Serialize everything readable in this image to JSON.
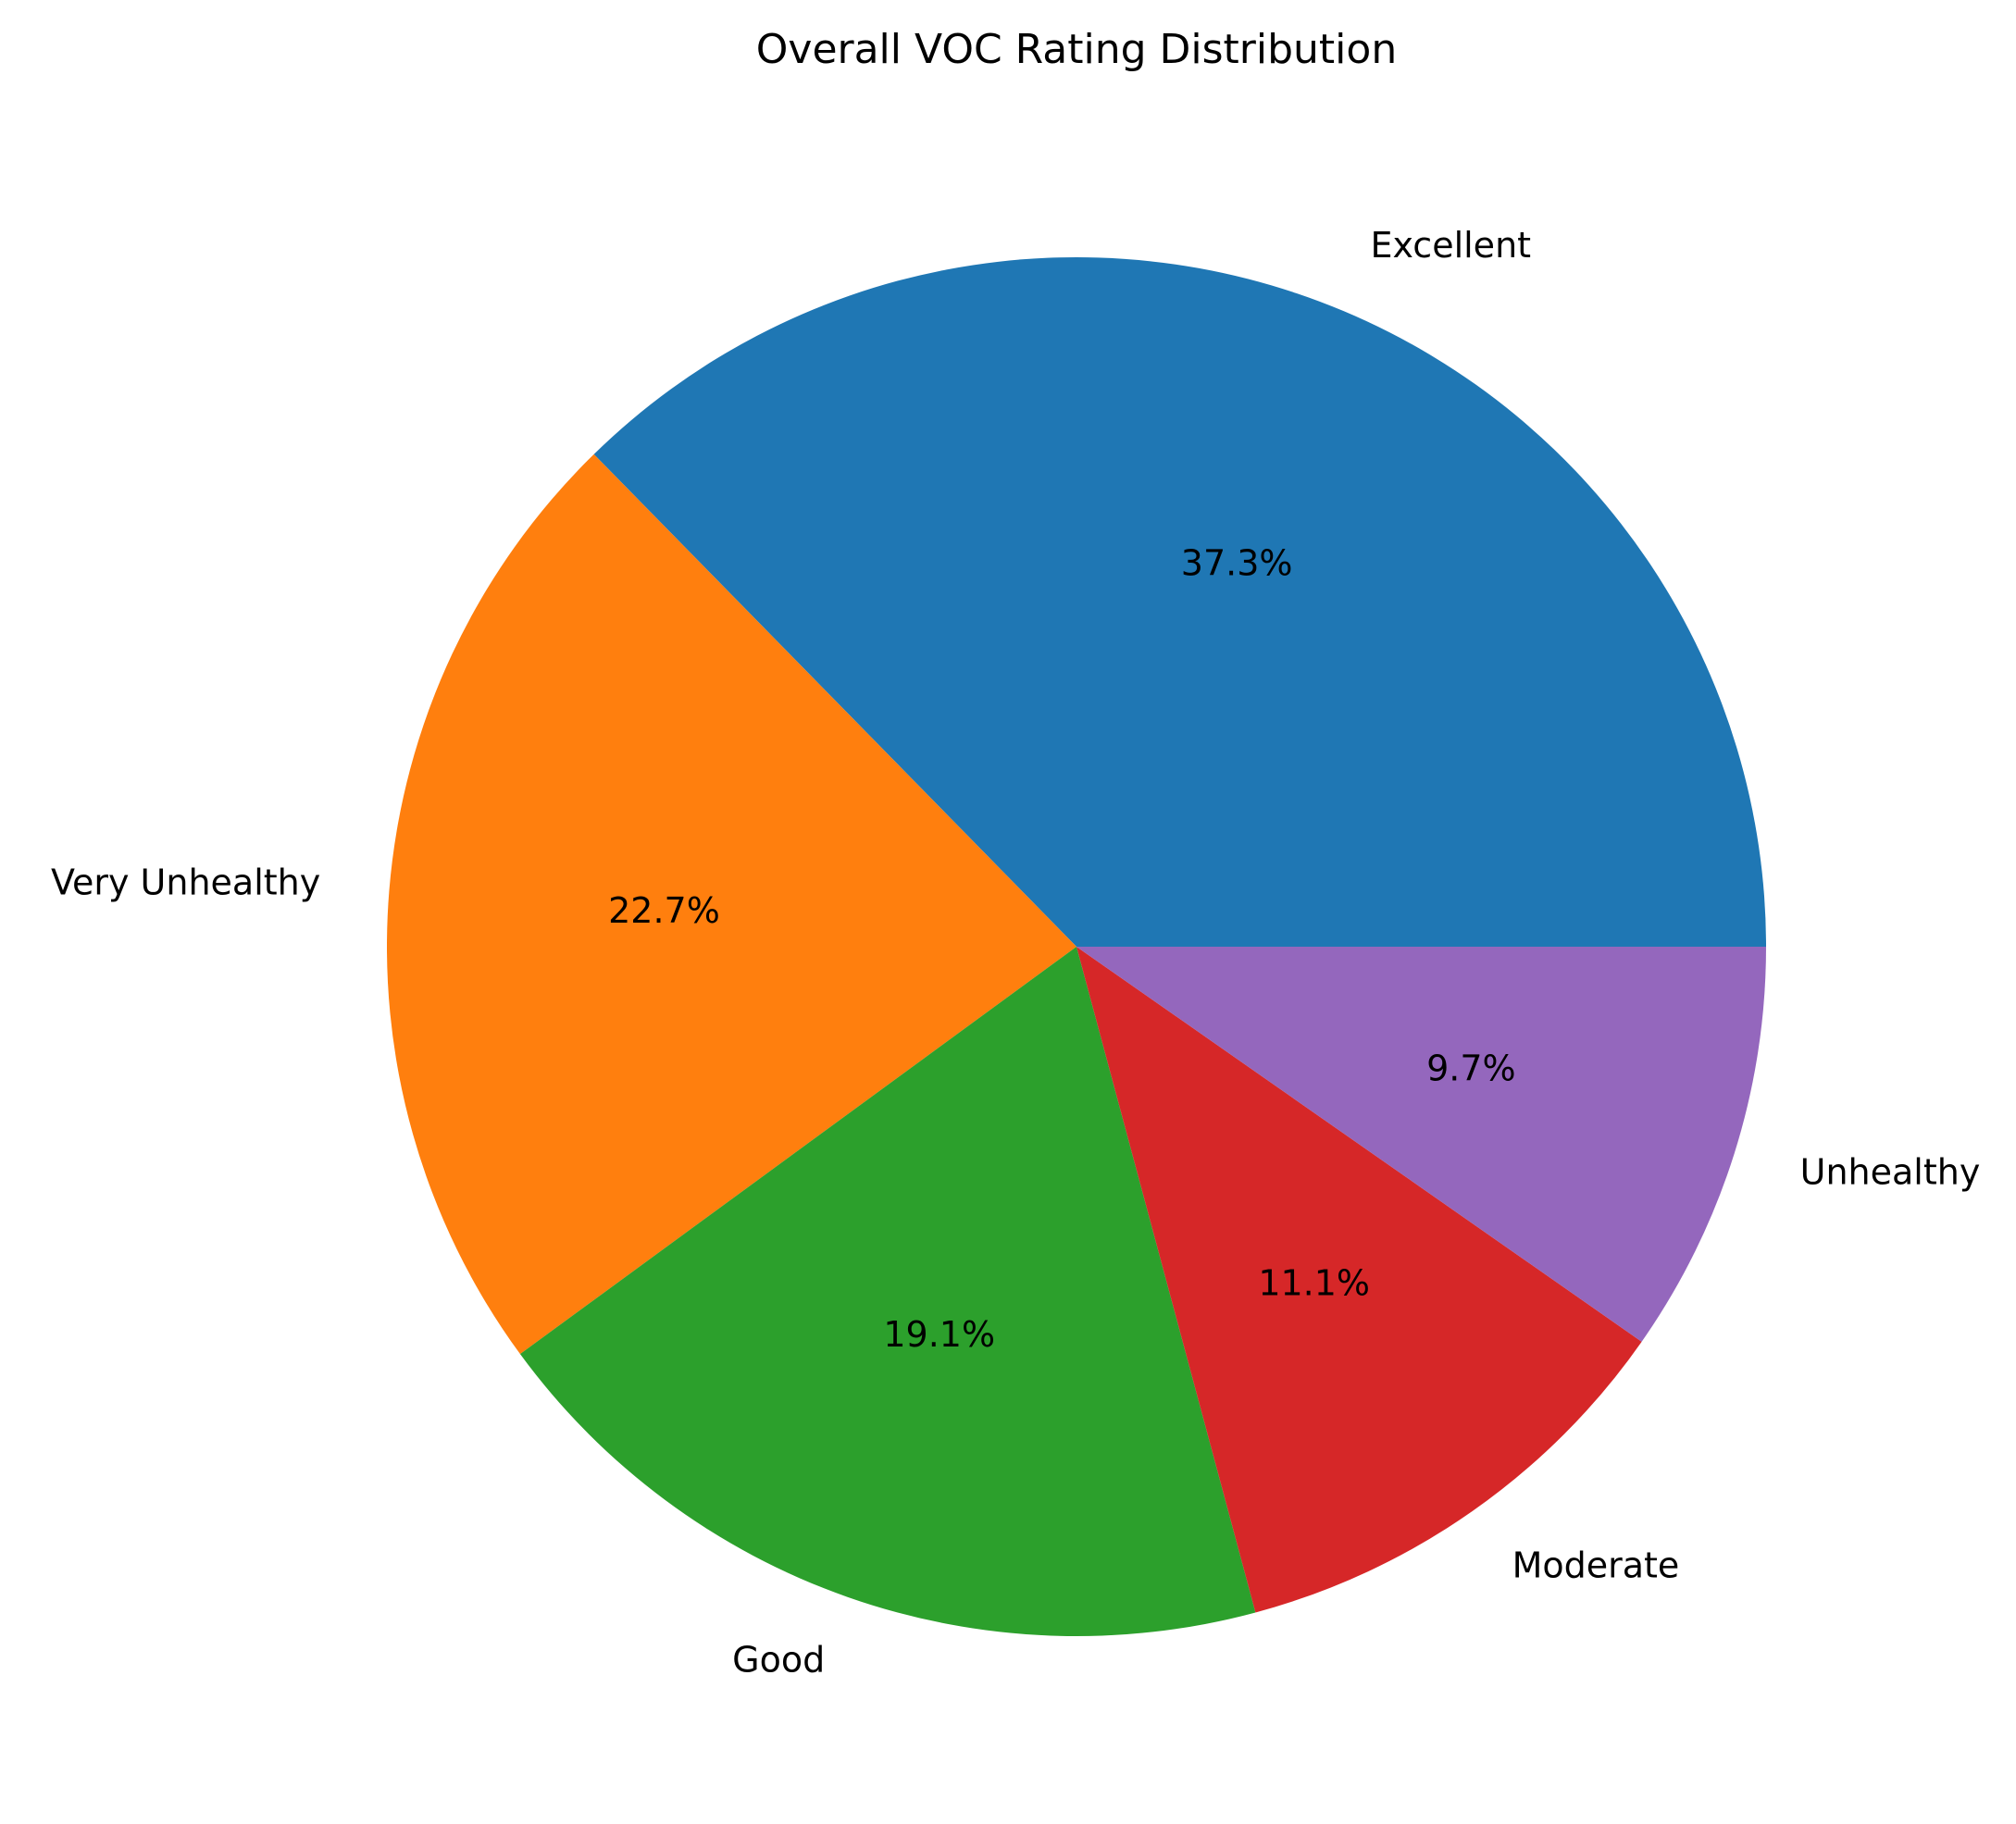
{
  "chart_data": {
    "type": "pie",
    "title": "Overall VOC Rating Distribution",
    "slices": [
      {
        "label": "Excellent",
        "value": 37.3,
        "pct_label": "37.3%",
        "color": "#1f77b4"
      },
      {
        "label": "Very Unhealthy",
        "value": 22.7,
        "pct_label": "22.7%",
        "color": "#ff7f0e"
      },
      {
        "label": "Good",
        "value": 19.1,
        "pct_label": "19.1%",
        "color": "#2ca02c"
      },
      {
        "label": "Moderate",
        "value": 11.1,
        "pct_label": "11.1%",
        "color": "#d62728"
      },
      {
        "label": "Unhealthy",
        "value": 9.7,
        "pct_label": "9.7%",
        "color": "#9467bd"
      }
    ],
    "start_angle_deg": 0,
    "direction": "counterclockwise",
    "legend": "none"
  }
}
